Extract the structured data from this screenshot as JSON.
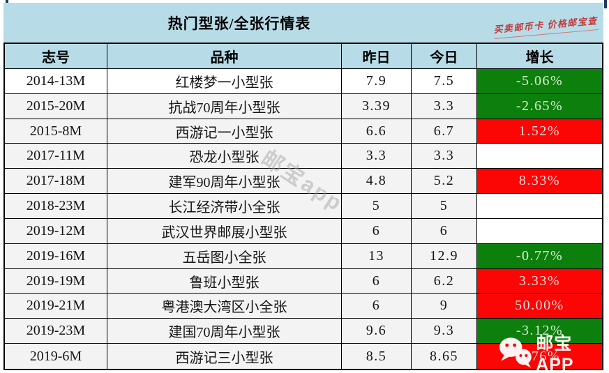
{
  "title": "热门型张/全张行情表",
  "corner_note": "买卖邮币卡 价格邮宝查",
  "watermarks": {
    "diagonal": "邮宝app",
    "app_icon": "wechat-icon",
    "app_label": "邮宝APP"
  },
  "colors": {
    "header_bg": "#b7dbe7",
    "row_alt_bg": "#f3f3f3",
    "up_bg": "#fb0505",
    "down_bg": "#0d7f0d",
    "note_red": "#c23a3a"
  },
  "chart_data": {
    "type": "table",
    "title": "热门型张/全张行情表",
    "columns": [
      "志号",
      "品种",
      "昨日",
      "今日",
      "增长"
    ],
    "rows": [
      {
        "id": "2014-13M",
        "name": "红楼梦一小型张",
        "yesterday": "7.9",
        "today": "7.5",
        "change": "-5.06%",
        "trend": "down"
      },
      {
        "id": "2015-20M",
        "name": "抗战70周年小型张",
        "yesterday": "3.39",
        "today": "3.3",
        "change": "-2.65%",
        "trend": "down"
      },
      {
        "id": "2015-8M",
        "name": "西游记一小型张",
        "yesterday": "6.6",
        "today": "6.7",
        "change": "1.52%",
        "trend": "up"
      },
      {
        "id": "2017-11M",
        "name": "恐龙小型张",
        "yesterday": "3.3",
        "today": "3.3",
        "change": "",
        "trend": "flat"
      },
      {
        "id": "2017-18M",
        "name": "建军90周年小型张",
        "yesterday": "4.8",
        "today": "5.2",
        "change": "8.33%",
        "trend": "up"
      },
      {
        "id": "2018-23M",
        "name": "长江经济带小全张",
        "yesterday": "5",
        "today": "5",
        "change": "",
        "trend": "flat"
      },
      {
        "id": "2019-12M",
        "name": "武汉世界邮展小型张",
        "yesterday": "6",
        "today": "6",
        "change": "",
        "trend": "flat"
      },
      {
        "id": "2019-16M",
        "name": "五岳图小全张",
        "yesterday": "13",
        "today": "12.9",
        "change": "-0.77%",
        "trend": "down"
      },
      {
        "id": "2019-19M",
        "name": "鲁班小型张",
        "yesterday": "6",
        "today": "6.2",
        "change": "3.33%",
        "trend": "up"
      },
      {
        "id": "2019-21M",
        "name": "粤港澳大湾区小全张",
        "yesterday": "6",
        "today": "9",
        "change": "50.00%",
        "trend": "up"
      },
      {
        "id": "2019-23M",
        "name": "建国70周年小型张",
        "yesterday": "9.6",
        "today": "9.3",
        "change": "-3.12%",
        "trend": "down"
      },
      {
        "id": "2019-6M",
        "name": "西游记三小型张",
        "yesterday": "8.5",
        "today": "8.65",
        "change": "1.76%",
        "trend": "up"
      }
    ]
  }
}
